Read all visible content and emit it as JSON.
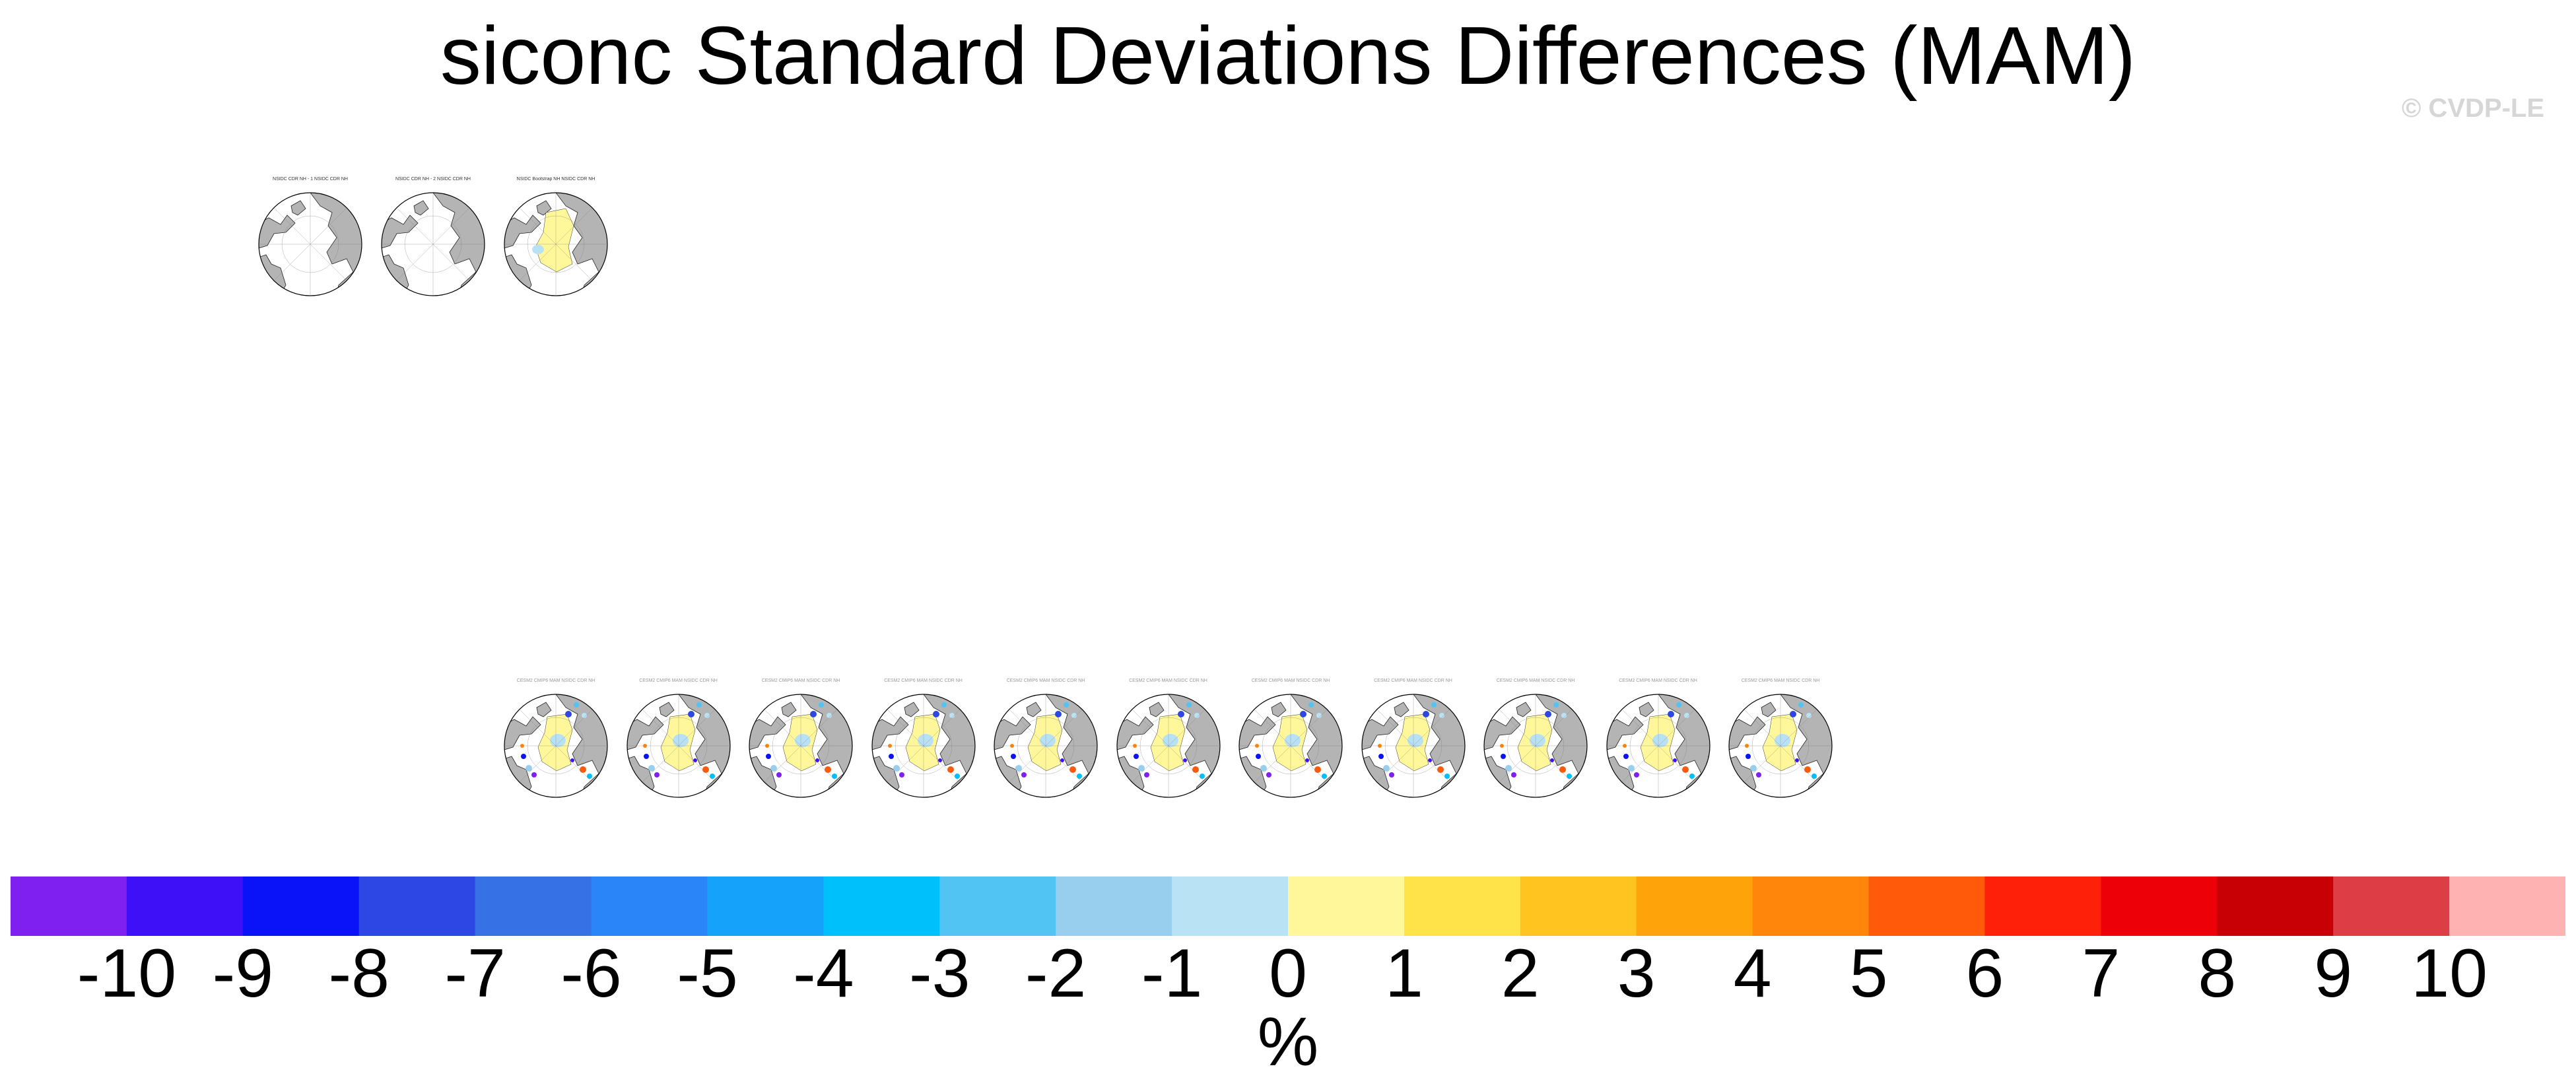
{
  "title": "siconc Standard Deviations Differences (MAM)",
  "watermark": "© CVDP-LE",
  "top_row_titles": [
    "NSIDC CDR NH - 1 NSIDC CDR NH",
    "NSIDC CDR NH - 2 NSIDC CDR NH",
    "NSIDC Bootstrap NH NSIDC CDR NH"
  ],
  "bottom_row_titles": [
    "CESM2 CMIP6 MAM NSIDC CDR NH",
    "CESM2 CMIP6 MAM NSIDC CDR NH",
    "CESM2 CMIP6 MAM NSIDC CDR NH",
    "CESM2 CMIP6 MAM NSIDC CDR NH",
    "CESM2 CMIP6 MAM NSIDC CDR NH",
    "CESM2 CMIP6 MAM NSIDC CDR NH",
    "CESM2 CMIP6 MAM NSIDC CDR NH",
    "CESM2 CMIP6 MAM NSIDC CDR NH",
    "CESM2 CMIP6 MAM NSIDC CDR NH",
    "CESM2 CMIP6 MAM NSIDC CDR NH",
    "CESM2 CMIP6 MAM NSIDC CDR NH"
  ],
  "colors": {
    "land": "#b4b4b4",
    "ice_pos": "#fff799",
    "ice_neg": "#b9e1f5"
  },
  "chart_data": {
    "type": "heatmap",
    "title": "siconc Standard Deviations Differences (MAM)",
    "colorbar": {
      "unit": "%",
      "ticks": [
        "-10",
        "-9",
        "-8",
        "-7",
        "-6",
        "-5",
        "-4",
        "-3",
        "-2",
        "-1",
        "0",
        "1",
        "2",
        "3",
        "4",
        "5",
        "6",
        "7",
        "8",
        "9",
        "10"
      ],
      "colors": [
        "#7f1ff0",
        "#3d10f8",
        "#0a12f8",
        "#2c47e4",
        "#3771e6",
        "#2a86f8",
        "#14a2fb",
        "#00c0fb",
        "#52c4f4",
        "#99cfee",
        "#b9e2f5",
        "#fff799",
        "#ffe348",
        "#ffc41f",
        "#ffa30a",
        "#ff860a",
        "#ff5a0a",
        "#ff200a",
        "#ed0008",
        "#c80006",
        "#dd3e46",
        "#ffb2b2"
      ]
    }
  }
}
